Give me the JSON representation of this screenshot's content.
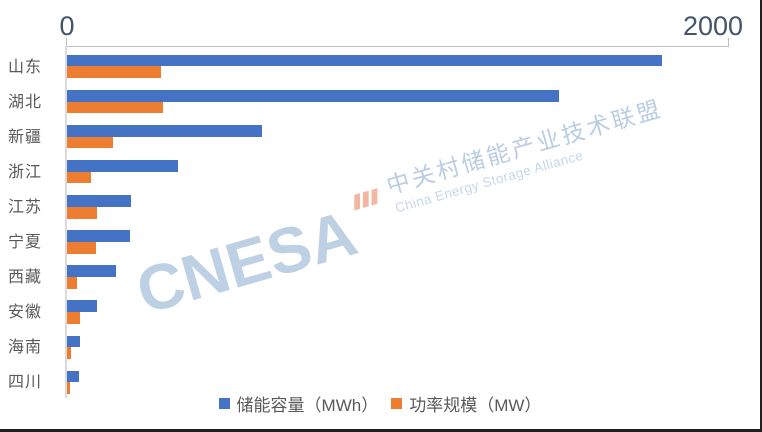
{
  "chart_data": {
    "type": "bar",
    "orientation": "horizontal",
    "title": "",
    "categories": [
      "山东",
      "湖北",
      "新疆",
      "浙江",
      "江苏",
      "宁夏",
      "西藏",
      "安徽",
      "海南",
      "四川"
    ],
    "series": [
      {
        "name": "储能容量（MWh）",
        "color": "#4472C4",
        "values": [
          1800,
          1490,
          590,
          335,
          193,
          190,
          148,
          91,
          38,
          37
        ]
      },
      {
        "name": "功率规模（MW）",
        "color": "#ED7D31",
        "values": [
          285,
          290,
          138,
          72,
          90,
          88,
          29,
          38,
          11,
          9
        ]
      }
    ],
    "value_axis": {
      "position": "top",
      "min": 0,
      "max": 2000,
      "tick_labels": [
        "0",
        "2000"
      ]
    },
    "legend_position": "bottom",
    "gridlines": false
  },
  "watermark": {
    "logo_text": "CNESA",
    "org_cn": "中关村储能产业技术联盟",
    "org_en": "China Energy Storage Alliance"
  },
  "colors": {
    "bar_capacity": "#4472C4",
    "bar_power": "#ED7D31",
    "axis_line": "#BFBFBF",
    "category_axis_line": "#DBDBDB",
    "label_text": "#595959",
    "tick_text": "#44546A",
    "watermark_blue": "#BDD0E4",
    "watermark_orange": "#F4B5A1",
    "frame_border": "#1F1F1F"
  }
}
